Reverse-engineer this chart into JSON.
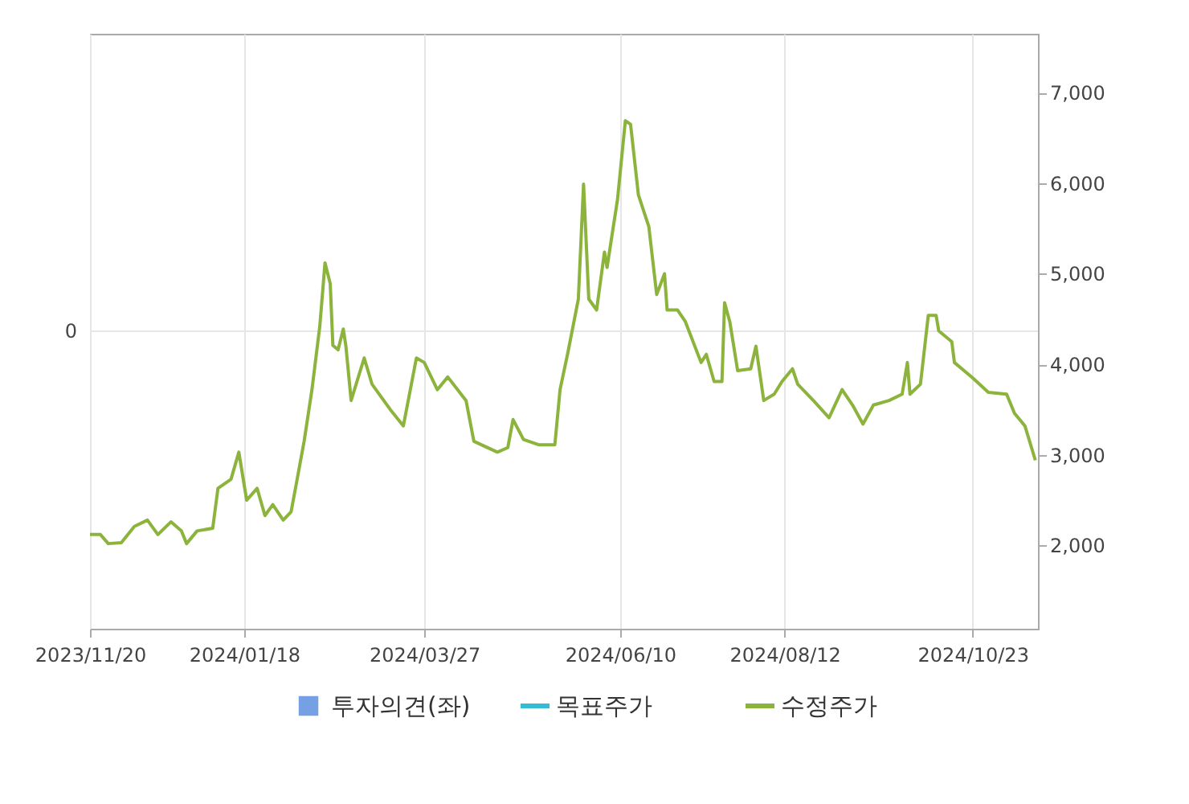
{
  "chart_data": {
    "type": "line",
    "legend": "bottom",
    "grid": true,
    "xlim": [
      "2023-11-20",
      "2024-11-17"
    ],
    "xticks": [
      {
        "value": "2023-11-20",
        "label": "2023/11/20"
      },
      {
        "value": "2024-01-18",
        "label": "2024/01/18"
      },
      {
        "value": "2024-03-27",
        "label": "2024/03/27"
      },
      {
        "value": "2024-06-10",
        "label": "2024/06/10"
      },
      {
        "value": "2024-08-12",
        "label": "2024/08/12"
      },
      {
        "value": "2024-10-23",
        "label": "2024/10/23"
      }
    ],
    "annotations": [
      "0"
    ],
    "y2lim": [
      1080,
      7650
    ],
    "y2ticks": [
      {
        "value": 2000,
        "label": "2,000"
      },
      {
        "value": 3000,
        "label": "3,000"
      },
      {
        "value": 4000,
        "label": "4,000"
      },
      {
        "value": 5000,
        "label": "5,000"
      },
      {
        "value": 6000,
        "label": "6,000"
      },
      {
        "value": 7000,
        "label": "7,000"
      }
    ],
    "series": [
      {
        "name": "투자의견(좌)",
        "type": "bar",
        "axis": "y",
        "color": "#3a78d8"
      },
      {
        "name": "목표주가",
        "type": "line",
        "axis": "y2",
        "color": "#33bcd4"
      },
      {
        "name": "수정주가",
        "axis": "y2",
        "color": "#8cb43c",
        "x": [
          "2023-11-20",
          "2023-11-24",
          "2023-11-27",
          "2023-12-02",
          "2023-12-07",
          "2023-12-12",
          "2023-12-16",
          "2023-12-21",
          "2023-12-25",
          "2023-12-27",
          "2023-12-31",
          "2024-01-06",
          "2024-01-08",
          "2024-01-13",
          "2024-01-16",
          "2024-01-19",
          "2024-01-23",
          "2024-01-26",
          "2024-01-29",
          "2024-02-02",
          "2024-02-05",
          "2024-02-07",
          "2024-02-10",
          "2024-02-13",
          "2024-02-16",
          "2024-02-18",
          "2024-02-20",
          "2024-02-21",
          "2024-02-23",
          "2024-02-25",
          "2024-02-26",
          "2024-02-28",
          "2024-03-04",
          "2024-03-07",
          "2024-03-14",
          "2024-03-19",
          "2024-03-24",
          "2024-03-27",
          "2024-04-01",
          "2024-04-05",
          "2024-04-12",
          "2024-04-15",
          "2024-04-24",
          "2024-04-28",
          "2024-04-30",
          "2024-05-04",
          "2024-05-10",
          "2024-05-16",
          "2024-05-18",
          "2024-05-21",
          "2024-05-25",
          "2024-05-27",
          "2024-05-29",
          "2024-06-01",
          "2024-06-04",
          "2024-06-05",
          "2024-06-09",
          "2024-06-12",
          "2024-06-14",
          "2024-06-17",
          "2024-06-21",
          "2024-06-24",
          "2024-06-27",
          "2024-06-28",
          "2024-07-02",
          "2024-07-05",
          "2024-07-11",
          "2024-07-13",
          "2024-07-16",
          "2024-07-19",
          "2024-07-20",
          "2024-07-22",
          "2024-07-25",
          "2024-07-30",
          "2024-08-01",
          "2024-08-04",
          "2024-08-08",
          "2024-08-11",
          "2024-08-15",
          "2024-08-17",
          "2024-08-23",
          "2024-08-29",
          "2024-09-03",
          "2024-09-07",
          "2024-09-11",
          "2024-09-15",
          "2024-09-21",
          "2024-09-26",
          "2024-09-28",
          "2024-09-29",
          "2024-10-03",
          "2024-10-06",
          "2024-10-09",
          "2024-10-10",
          "2024-10-15",
          "2024-10-16",
          "2024-10-23",
          "2024-10-29",
          "2024-11-05",
          "2024-11-08",
          "2024-11-12",
          "2024-11-16"
        ],
        "values": [
          2120,
          2120,
          2020,
          2030,
          2210,
          2280,
          2120,
          2260,
          2160,
          2020,
          2160,
          2190,
          2630,
          2730,
          3030,
          2500,
          2630,
          2330,
          2450,
          2280,
          2370,
          2680,
          3150,
          3720,
          4420,
          5120,
          4890,
          4210,
          4160,
          4390,
          4200,
          3600,
          4070,
          3780,
          3500,
          3320,
          4070,
          4020,
          3720,
          3860,
          3600,
          3150,
          3030,
          3080,
          3390,
          3170,
          3110,
          3110,
          3720,
          4130,
          4720,
          5990,
          4720,
          4600,
          5240,
          5070,
          5820,
          6690,
          6650,
          5870,
          5520,
          4770,
          5000,
          4600,
          4600,
          4470,
          4020,
          4110,
          3810,
          3810,
          4680,
          4470,
          3930,
          3950,
          4200,
          3600,
          3670,
          3810,
          3950,
          3780,
          3600,
          3410,
          3720,
          3550,
          3340,
          3550,
          3600,
          3670,
          4020,
          3670,
          3780,
          4540,
          4540,
          4370,
          4250,
          4020,
          3850,
          3690,
          3670,
          3460,
          3320,
          2940
        ]
      }
    ]
  }
}
